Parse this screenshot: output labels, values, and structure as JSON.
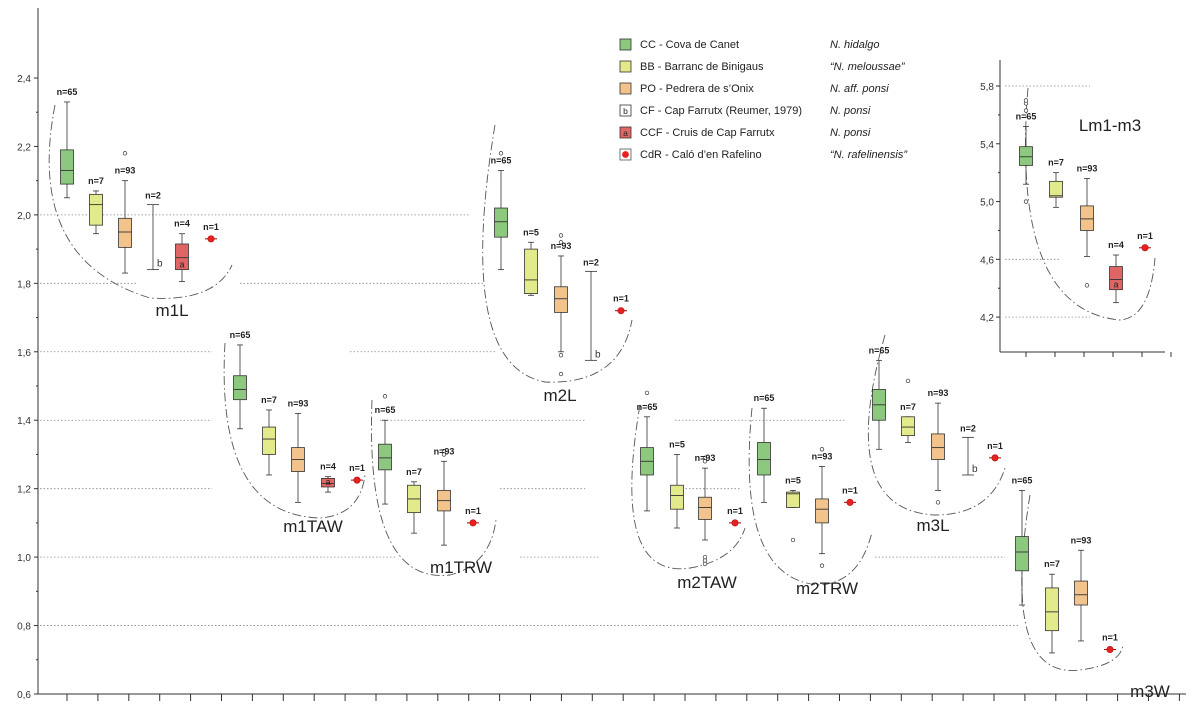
{
  "chart_data": [
    {
      "type": "boxplot",
      "ylim": [
        0.6,
        2.5
      ],
      "yticks": [
        "0,6",
        "0,8",
        "1,0",
        "1,2",
        "1,4",
        "1,6",
        "1,8",
        "2,0",
        "2,2",
        "2,4"
      ],
      "ytick_values": [
        0.6,
        0.8,
        1.0,
        1.2,
        1.4,
        1.6,
        1.8,
        2.0,
        2.2,
        2.4
      ],
      "x_tick_count": 37,
      "legend": [
        {
          "sym": "box",
          "color": "#8cc97e",
          "code": "CC - Cova de Canet",
          "taxon": "N. hidalgo"
        },
        {
          "sym": "box",
          "color": "#e3ea8c",
          "code": "BB - Barranc de Binigaus",
          "taxon": "“N. meloussae”"
        },
        {
          "sym": "box",
          "color": "#f2c48c",
          "code": "PO - Pedrera de s’Onix",
          "taxon": "N. aff. ponsi"
        },
        {
          "sym": "boxletter",
          "color": "#ffffff",
          "letter": "b",
          "code": "CF - Cap Farrutx (Reumer, 1979)",
          "taxon": "N. ponsi"
        },
        {
          "sym": "boxletter",
          "color": "#e06666",
          "letter": "a",
          "code": "CCF - Cruis de Cap Farrutx",
          "taxon": "N. ponsi"
        },
        {
          "sym": "dot",
          "color": "#e8201f",
          "code": "CdR - Caló d’en Rafelino",
          "taxon": "“N. rafelinensis”"
        }
      ],
      "colors": {
        "CC": "#8cc97e",
        "BB": "#e3ea8c",
        "PO": "#f2c48c",
        "CF": "#ffffff",
        "CCF": "#e06666",
        "CdR": "#e8201f"
      },
      "groups": [
        {
          "label": "m1L",
          "series": [
            {
              "site": "CC",
              "n": "n=65",
              "min": 2.05,
              "q1": 2.09,
              "median": 2.13,
              "q3": 2.19,
              "max": 2.33,
              "outliers": []
            },
            {
              "site": "BB",
              "n": "n=7",
              "min": 1.945,
              "q1": 1.97,
              "median": 2.03,
              "q3": 2.06,
              "max": 2.07,
              "outliers": []
            },
            {
              "site": "PO",
              "n": "n=93",
              "min": 1.83,
              "q1": 1.905,
              "median": 1.95,
              "q3": 1.99,
              "max": 2.1,
              "outliers": [
                2.18
              ]
            },
            {
              "site": "CF",
              "n": "n=2",
              "min": 1.84,
              "max": 2.03,
              "letter": "b"
            },
            {
              "site": "CCF",
              "n": "n=4",
              "min": 1.805,
              "q1": 1.84,
              "median": 1.875,
              "q3": 1.915,
              "max": 1.945,
              "letter": "a",
              "outliers": []
            },
            {
              "site": "CdR",
              "n": "n=1",
              "value": 1.93
            }
          ]
        },
        {
          "label": "m1TAW",
          "series": [
            {
              "site": "CC",
              "n": "n=65",
              "min": 1.375,
              "q1": 1.46,
              "median": 1.49,
              "q3": 1.53,
              "max": 1.62,
              "outliers": []
            },
            {
              "site": "BB",
              "n": "n=7",
              "min": 1.24,
              "q1": 1.3,
              "median": 1.345,
              "q3": 1.38,
              "max": 1.43,
              "outliers": []
            },
            {
              "site": "PO",
              "n": "n=93",
              "min": 1.16,
              "q1": 1.25,
              "median": 1.285,
              "q3": 1.32,
              "max": 1.42,
              "outliers": []
            },
            {
              "site": "CCF",
              "n": "n=4",
              "min": 1.19,
              "q1": 1.205,
              "median": 1.215,
              "q3": 1.23,
              "max": 1.235,
              "letter": "a",
              "outliers": []
            },
            {
              "site": "CdR",
              "n": "n=1",
              "value": 1.225
            }
          ]
        },
        {
          "label": "m1TRW",
          "series": [
            {
              "site": "CC",
              "n": "n=65",
              "min": 1.155,
              "q1": 1.255,
              "median": 1.29,
              "q3": 1.33,
              "max": 1.4,
              "outliers": [
                1.47
              ]
            },
            {
              "site": "BB",
              "n": "n=7",
              "min": 1.07,
              "q1": 1.13,
              "median": 1.17,
              "q3": 1.21,
              "max": 1.22,
              "outliers": []
            },
            {
              "site": "PO",
              "n": "n=93",
              "min": 1.035,
              "q1": 1.135,
              "median": 1.165,
              "q3": 1.195,
              "max": 1.28,
              "outliers": [
                1.3,
                1.31
              ]
            },
            {
              "site": "CdR",
              "n": "n=1",
              "value": 1.1
            }
          ]
        },
        {
          "label": "m2L",
          "series": [
            {
              "site": "CC",
              "n": "n=65",
              "min": 1.84,
              "q1": 1.935,
              "median": 1.98,
              "q3": 2.02,
              "max": 2.13,
              "outliers": [
                2.18
              ]
            },
            {
              "site": "BB",
              "n": "n=5",
              "min": 1.765,
              "q1": 1.77,
              "median": 1.81,
              "q3": 1.9,
              "max": 1.92,
              "outliers": []
            },
            {
              "site": "PO",
              "n": "n=93",
              "min": 1.6,
              "q1": 1.715,
              "median": 1.755,
              "q3": 1.79,
              "max": 1.88,
              "outliers": [
                1.92,
                1.94,
                1.59,
                1.535
              ]
            },
            {
              "site": "CF",
              "n": "n=2",
              "min": 1.575,
              "max": 1.835,
              "letter": "b"
            },
            {
              "site": "CdR",
              "n": "n=1",
              "value": 1.72
            }
          ]
        },
        {
          "label": "m2TAW",
          "series": [
            {
              "site": "CC",
              "n": "n=65",
              "min": 1.135,
              "q1": 1.24,
              "median": 1.28,
              "q3": 1.32,
              "max": 1.41,
              "outliers": [
                1.48
              ]
            },
            {
              "site": "BB",
              "n": "n=5",
              "min": 1.085,
              "q1": 1.14,
              "median": 1.18,
              "q3": 1.21,
              "max": 1.3,
              "outliers": []
            },
            {
              "site": "PO",
              "n": "n=93",
              "min": 1.05,
              "q1": 1.11,
              "median": 1.145,
              "q3": 1.175,
              "max": 1.26,
              "outliers": [
                1.28,
                1.29,
                1.0,
                0.99,
                0.98
              ]
            },
            {
              "site": "CdR",
              "n": "n=1",
              "value": 1.1
            }
          ]
        },
        {
          "label": "m2TRW",
          "series": [
            {
              "site": "CC",
              "n": "n=65",
              "min": 1.16,
              "q1": 1.24,
              "median": 1.285,
              "q3": 1.335,
              "max": 1.435,
              "outliers": []
            },
            {
              "site": "BB",
              "n": "n=5",
              "min": 1.145,
              "q1": 1.145,
              "median": 1.185,
              "q3": 1.19,
              "max": 1.195,
              "outliers": [
                1.05
              ]
            },
            {
              "site": "PO",
              "n": "n=93",
              "min": 1.01,
              "q1": 1.1,
              "median": 1.14,
              "q3": 1.17,
              "max": 1.265,
              "outliers": [
                1.315,
                0.975
              ]
            },
            {
              "site": "CdR",
              "n": "n=1",
              "value": 1.16
            }
          ]
        },
        {
          "label": "m3L",
          "series": [
            {
              "site": "CC",
              "n": "n=65",
              "min": 1.315,
              "q1": 1.4,
              "median": 1.445,
              "q3": 1.49,
              "max": 1.575,
              "outliers": []
            },
            {
              "site": "BB",
              "n": "n=7",
              "min": 1.335,
              "q1": 1.355,
              "median": 1.38,
              "q3": 1.41,
              "max": 1.41,
              "outliers": [
                1.515
              ]
            },
            {
              "site": "PO",
              "n": "n=93",
              "min": 1.195,
              "q1": 1.285,
              "median": 1.32,
              "q3": 1.36,
              "max": 1.45,
              "outliers": [
                1.16
              ]
            },
            {
              "site": "CF",
              "n": "n=2",
              "min": 1.24,
              "max": 1.35,
              "letter": "b"
            },
            {
              "site": "CdR",
              "n": "n=1",
              "value": 1.29
            }
          ]
        },
        {
          "label": "m3W",
          "series": [
            {
              "site": "CC",
              "n": "n=65",
              "min": 0.86,
              "q1": 0.96,
              "median": 1.015,
              "q3": 1.06,
              "max": 1.195,
              "outliers": []
            },
            {
              "site": "BB",
              "n": "n=7",
              "min": 0.72,
              "q1": 0.785,
              "median": 0.84,
              "q3": 0.91,
              "max": 0.95,
              "outliers": []
            },
            {
              "site": "PO",
              "n": "n=93",
              "min": 0.755,
              "q1": 0.86,
              "median": 0.89,
              "q3": 0.93,
              "max": 1.02,
              "outliers": []
            },
            {
              "site": "CdR",
              "n": "n=1",
              "value": 0.73
            }
          ]
        }
      ]
    },
    {
      "type": "boxplot",
      "title": "Lm1-m3",
      "ylim": [
        4.0,
        5.9
      ],
      "yticks": [
        "4,2",
        "4,6",
        "5,0",
        "5,4",
        "5,8"
      ],
      "ytick_values": [
        4.2,
        4.6,
        5.0,
        5.4,
        5.8
      ],
      "series": [
        {
          "site": "CC",
          "n": "n=65",
          "min": 5.12,
          "q1": 5.25,
          "median": 5.31,
          "q3": 5.38,
          "max": 5.52,
          "outliers": [
            5.0,
            5.63,
            5.68,
            5.7
          ]
        },
        {
          "site": "BB",
          "n": "n=7",
          "min": 4.96,
          "q1": 5.03,
          "median": 5.04,
          "q3": 5.14,
          "max": 5.2,
          "outliers": []
        },
        {
          "site": "PO",
          "n": "n=93",
          "min": 4.62,
          "q1": 4.8,
          "median": 4.88,
          "q3": 4.97,
          "max": 5.16,
          "outliers": [
            4.42
          ]
        },
        {
          "site": "CCF",
          "n": "n=4",
          "min": 4.3,
          "q1": 4.39,
          "median": 4.46,
          "q3": 4.55,
          "max": 4.63,
          "letter": "a",
          "outliers": []
        },
        {
          "site": "CdR",
          "n": "n=1",
          "value": 4.68
        }
      ]
    }
  ]
}
